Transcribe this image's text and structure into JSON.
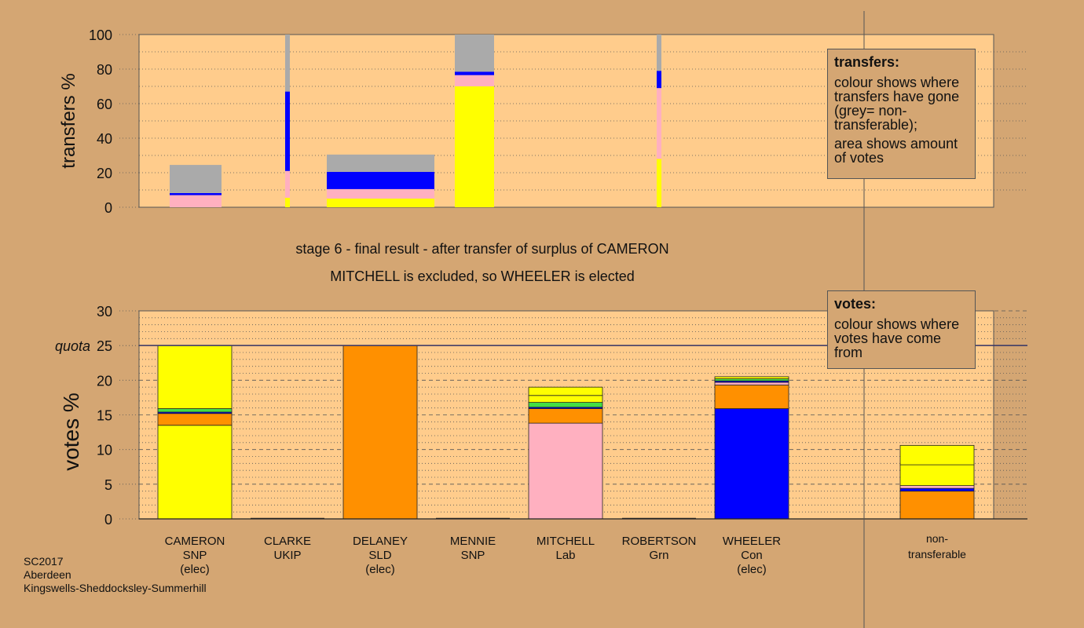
{
  "chart_data": [
    {
      "type": "bar",
      "name": "transfers",
      "ylabel": "transfers %",
      "ylim": [
        0,
        100
      ],
      "yticks": [
        0,
        20,
        40,
        60,
        80,
        100
      ],
      "columns": [
        {
          "candidate": "CAMERON",
          "segments": [
            {
              "from": 0,
              "to": 7,
              "color": "#ffb0c0"
            },
            {
              "from": 7,
              "to": 8.2,
              "color": "#0000ff"
            },
            {
              "from": 8.2,
              "to": 24.5,
              "color": "#aaaaaa"
            }
          ]
        },
        {
          "candidate": "CLARKE",
          "segments": [
            {
              "from": 0,
              "to": 5.5,
              "color": "#ffff00"
            },
            {
              "from": 5.5,
              "to": 21,
              "color": "#ffb0c0"
            },
            {
              "from": 21,
              "to": 67,
              "color": "#0000ff"
            },
            {
              "from": 67,
              "to": 100,
              "color": "#aaaaaa"
            }
          ]
        },
        {
          "candidate": "DELANEY",
          "segments": [
            {
              "from": 0,
              "to": 5,
              "color": "#ffff00"
            },
            {
              "from": 5,
              "to": 10.5,
              "color": "#ffb0c0"
            },
            {
              "from": 10.5,
              "to": 20.5,
              "color": "#0000ff"
            },
            {
              "from": 20.5,
              "to": 30.5,
              "color": "#aaaaaa"
            }
          ]
        },
        {
          "candidate": "MENNIE",
          "segments": [
            {
              "from": 0,
              "to": 70,
              "color": "#ffff00"
            },
            {
              "from": 70,
              "to": 76.5,
              "color": "#ffb0c0"
            },
            {
              "from": 76.5,
              "to": 78.5,
              "color": "#0000ff"
            },
            {
              "from": 78.5,
              "to": 100,
              "color": "#aaaaaa"
            }
          ]
        },
        {
          "candidate": "ROBERTSON",
          "segments": [
            {
              "from": 0,
              "to": 28,
              "color": "#ffff00"
            },
            {
              "from": 28,
              "to": 69,
              "color": "#ffb0c0"
            },
            {
              "from": 69,
              "to": 79,
              "color": "#0000ff"
            },
            {
              "from": 79,
              "to": 100,
              "color": "#aaaaaa"
            }
          ]
        }
      ]
    },
    {
      "type": "bar",
      "name": "votes",
      "ylabel": "votes %",
      "ylim": [
        0,
        30
      ],
      "yticks": [
        0,
        5,
        10,
        15,
        20,
        25,
        30
      ],
      "quota": 25,
      "quota_label": "quota",
      "categories": [
        {
          "name": "CAMERON",
          "party": "SNP",
          "status": "(elec)"
        },
        {
          "name": "CLARKE",
          "party": "UKIP",
          "status": ""
        },
        {
          "name": "DELANEY",
          "party": "SLD",
          "status": "(elec)"
        },
        {
          "name": "MENNIE",
          "party": "SNP",
          "status": ""
        },
        {
          "name": "MITCHELL",
          "party": "Lab",
          "status": ""
        },
        {
          "name": "ROBERTSON",
          "party": "Grn",
          "status": ""
        },
        {
          "name": "WHEELER",
          "party": "Con",
          "status": "(elec)"
        }
      ],
      "nontransferable_label_1": "non-",
      "nontransferable_label_2": "transferable",
      "bars": [
        {
          "candidate": "CAMERON",
          "segments": [
            {
              "from": 0,
              "to": 13.5,
              "color": "#ffff00"
            },
            {
              "from": 13.5,
              "to": 15.2,
              "color": "#ff9000"
            },
            {
              "from": 15.2,
              "to": 15.4,
              "color": "#0000ff"
            },
            {
              "from": 15.4,
              "to": 15.9,
              "color": "#44dd44"
            },
            {
              "from": 15.9,
              "to": 25,
              "color": "#ffff00"
            }
          ]
        },
        {
          "candidate": "CLARKE",
          "segments": []
        },
        {
          "candidate": "DELANEY",
          "segments": [
            {
              "from": 0,
              "to": 25,
              "color": "#ff9000"
            }
          ]
        },
        {
          "candidate": "MENNIE",
          "segments": []
        },
        {
          "candidate": "MITCHELL",
          "segments": [
            {
              "from": 0,
              "to": 13.8,
              "color": "#ffb0c0"
            },
            {
              "from": 13.8,
              "to": 15.9,
              "color": "#ff9000"
            },
            {
              "from": 15.9,
              "to": 16.1,
              "color": "#0000ff"
            },
            {
              "from": 16.1,
              "to": 16.8,
              "color": "#44dd44"
            },
            {
              "from": 16.8,
              "to": 17.8,
              "color": "#ffff00"
            },
            {
              "from": 17.8,
              "to": 19.0,
              "color": "#ffff00"
            }
          ]
        },
        {
          "candidate": "ROBERTSON",
          "segments": []
        },
        {
          "candidate": "WHEELER",
          "segments": [
            {
              "from": 0,
              "to": 15.9,
              "color": "#0000ff"
            },
            {
              "from": 15.9,
              "to": 19.3,
              "color": "#ff9000"
            },
            {
              "from": 19.3,
              "to": 19.7,
              "color": "#ffb0c0"
            },
            {
              "from": 19.7,
              "to": 19.9,
              "color": "#0000ff"
            },
            {
              "from": 19.9,
              "to": 20.2,
              "color": "#44dd44"
            },
            {
              "from": 20.2,
              "to": 20.5,
              "color": "#ffff00"
            }
          ]
        },
        {
          "candidate": "non-transferable",
          "segments": [
            {
              "from": 0,
              "to": 4.0,
              "color": "#ff9000"
            },
            {
              "from": 4.0,
              "to": 4.4,
              "color": "#0000ff"
            },
            {
              "from": 4.4,
              "to": 4.8,
              "color": "#ffb0c0"
            },
            {
              "from": 4.8,
              "to": 7.8,
              "color": "#ffff00"
            },
            {
              "from": 7.8,
              "to": 10.6,
              "color": "#ffff00"
            }
          ]
        }
      ]
    }
  ],
  "stage_title": "stage 6 - final result - after transfer of surplus of CAMERON",
  "stage_subtitle": "MITCHELL is excluded, so WHEELER is elected",
  "legend_transfers": {
    "title": "transfers:",
    "p1": "colour shows where transfers have gone (grey= non-transferable);",
    "p2": "area shows amount of votes"
  },
  "legend_votes": {
    "title": "votes:",
    "p1": "colour shows where votes have come from"
  },
  "footer": {
    "line1": "SC2017",
    "line2": "Aberdeen",
    "line3": "Kingswells-Sheddocksley-Summerhill"
  },
  "colors": {
    "panel": "#ffcc8c",
    "background": "#d4a673"
  }
}
